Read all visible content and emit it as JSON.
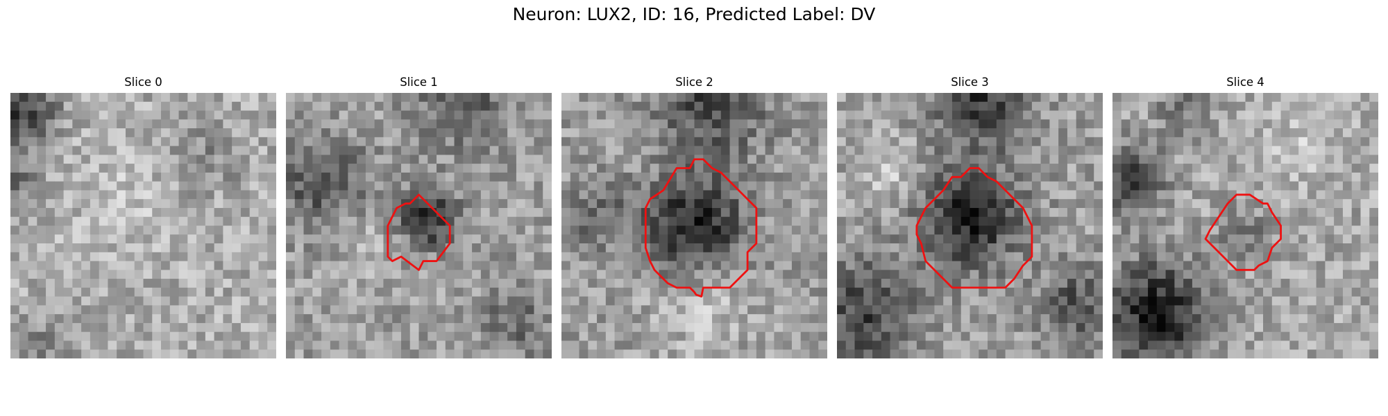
{
  "figure": {
    "title": "Neuron: LUX2, ID: 16, Predicted Label: DV",
    "outline_color": "#ee1111"
  },
  "panels": [
    {
      "title": "Slice 0",
      "has_outline": false
    },
    {
      "title": "Slice 1",
      "has_outline": true
    },
    {
      "title": "Slice 2",
      "has_outline": true
    },
    {
      "title": "Slice 3",
      "has_outline": true
    },
    {
      "title": "Slice 4",
      "has_outline": true
    }
  ]
}
